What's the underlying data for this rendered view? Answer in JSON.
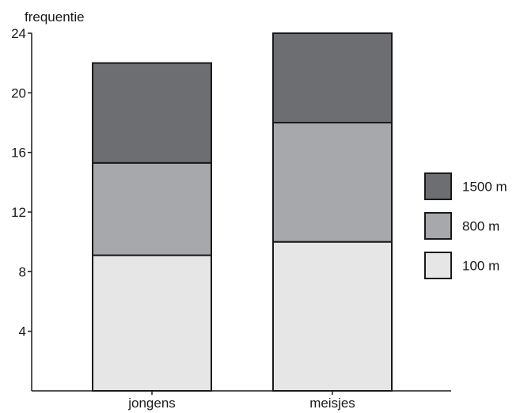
{
  "chart_data": {
    "type": "bar",
    "stacked": true,
    "ylabel": "frequentie",
    "xlabel": "",
    "ylim": [
      0,
      24
    ],
    "yticks": [
      4,
      8,
      12,
      16,
      20,
      24
    ],
    "grid": false,
    "legend_position": "right",
    "categories": [
      "jongens",
      "meisjes"
    ],
    "series": [
      {
        "name": "100 m",
        "values": [
          9.1,
          10
        ],
        "color": "#e6e6e7"
      },
      {
        "name": "800 m",
        "values": [
          6.2,
          8
        ],
        "color": "#a7a8ab"
      },
      {
        "name": "1500 m",
        "values": [
          6.7,
          6
        ],
        "color": "#6d6e71"
      }
    ],
    "legend_order": [
      "1500 m",
      "800 m",
      "100 m"
    ]
  }
}
